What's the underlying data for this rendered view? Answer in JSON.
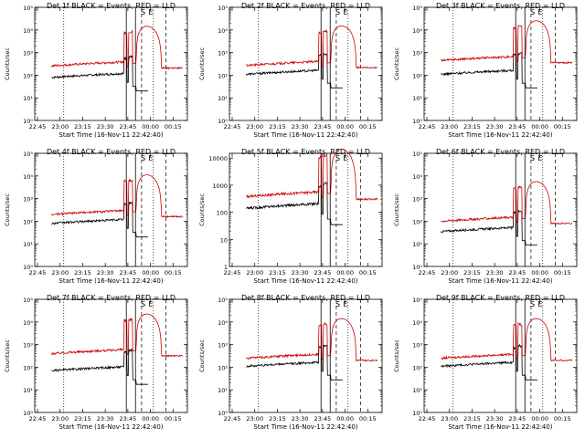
{
  "chart_data": [
    {
      "type": "line",
      "title": "Det 1f BLACK = Events, RED = LLD",
      "xlabel": "Start Time (16-Nov-11 22:42:40)",
      "ylabel": "Counts/sec",
      "yscale": "log",
      "xticks": [
        "22:45",
        "23:00",
        "23:15",
        "23:30",
        "23:45",
        "00:00",
        "00:15"
      ],
      "yticks": [
        "10⁰",
        "10¹",
        "10²",
        "10³",
        "10⁴",
        "10⁵"
      ],
      "ylim": [
        1,
        100000
      ],
      "flags": [
        "S",
        "E"
      ],
      "series": [
        {
          "name": "Events",
          "color": "#000000",
          "baseline": 80
        },
        {
          "name": "LLD",
          "color": "#cc0000",
          "baseline": 260
        }
      ]
    },
    {
      "type": "line",
      "title": "Det 2f BLACK = Events, RED = LLD",
      "xlabel": "Start Time (16-Nov-11 22:42:40)",
      "ylabel": "Counts/sec",
      "yscale": "log",
      "xticks": [
        "22:45",
        "23:00",
        "23:15",
        "23:30",
        "23:45",
        "00:00",
        "00:15"
      ],
      "yticks": [
        "10⁰",
        "10¹",
        "10²",
        "10³",
        "10⁴",
        "10⁵"
      ],
      "ylim": [
        1,
        100000
      ],
      "flags": [
        "S",
        "E"
      ],
      "series": [
        {
          "name": "Events",
          "color": "#000000",
          "baseline": 110
        },
        {
          "name": "LLD",
          "color": "#cc0000",
          "baseline": 270
        }
      ]
    },
    {
      "type": "line",
      "title": "Det 3f BLACK = Events, RED = LLD",
      "xlabel": "Start Time (16-Nov-11 22:42:40)",
      "ylabel": "Counts/sec",
      "yscale": "log",
      "xticks": [
        "22:45",
        "23:00",
        "23:15",
        "23:30",
        "23:45",
        "00:00",
        "00:15"
      ],
      "yticks": [
        "10⁰",
        "10¹",
        "10²",
        "10³",
        "10⁴",
        "10⁵"
      ],
      "ylim": [
        1,
        100000
      ],
      "flags": [
        "S",
        "E"
      ],
      "series": [
        {
          "name": "Events",
          "color": "#000000",
          "baseline": 110
        },
        {
          "name": "LLD",
          "color": "#cc0000",
          "baseline": 450
        }
      ]
    },
    {
      "type": "line",
      "title": "Det 4f BLACK = Events, RED = LLD",
      "xlabel": "Start Time (16-Nov-11 22:42:40)",
      "ylabel": "Counts/sec",
      "yscale": "log",
      "xticks": [
        "22:45",
        "23:00",
        "23:15",
        "23:30",
        "23:45",
        "00:00",
        "00:15"
      ],
      "yticks": [
        "10⁰",
        "10¹",
        "10²",
        "10³",
        "10⁴",
        "10⁵"
      ],
      "ylim": [
        1,
        100000
      ],
      "flags": [
        "S",
        "E"
      ],
      "series": [
        {
          "name": "Events",
          "color": "#000000",
          "baseline": 80
        },
        {
          "name": "LLD",
          "color": "#cc0000",
          "baseline": 200
        }
      ]
    },
    {
      "type": "line",
      "title": "Det 5f BLACK = Events, RED = LLD",
      "xlabel": "Start Time (16-Nov-11 22:42:40)",
      "ylabel": "Counts/sec",
      "yscale": "log",
      "xticks": [
        "22:45",
        "23:00",
        "23:15",
        "23:30",
        "23:45",
        "00:00",
        "00:15"
      ],
      "yticks": [
        "1",
        "10",
        "100",
        "1000",
        "10000"
      ],
      "ylim": [
        1,
        15000
      ],
      "flags": [
        "S",
        "E"
      ],
      "series": [
        {
          "name": "Events",
          "color": "#000000",
          "baseline": 140
        },
        {
          "name": "LLD",
          "color": "#cc0000",
          "baseline": 380
        }
      ]
    },
    {
      "type": "line",
      "title": "Det 6f BLACK = Events, RED = LLD",
      "xlabel": "Start Time (16-Nov-11 22:42:40)",
      "ylabel": "Counts/sec",
      "yscale": "log",
      "xticks": [
        "22:45",
        "23:00",
        "23:15",
        "23:30",
        "23:45",
        "00:00",
        "00:15"
      ],
      "yticks": [
        "10⁰",
        "10¹",
        "10²",
        "10³",
        "10⁴",
        "10⁵"
      ],
      "ylim": [
        1,
        100000
      ],
      "flags": [
        "S",
        "E"
      ],
      "series": [
        {
          "name": "Events",
          "color": "#000000",
          "baseline": 35
        },
        {
          "name": "LLD",
          "color": "#cc0000",
          "baseline": 100
        }
      ]
    },
    {
      "type": "line",
      "title": "Det 7f BLACK = Events, RED = LLD",
      "xlabel": "Start Time (16-Nov-11 22:42:40)",
      "ylabel": "Counts/sec",
      "yscale": "log",
      "xticks": [
        "22:45",
        "23:00",
        "23:15",
        "23:30",
        "23:45",
        "00:00",
        "00:15"
      ],
      "yticks": [
        "10⁰",
        "10¹",
        "10²",
        "10³",
        "10⁴",
        "10⁵"
      ],
      "ylim": [
        1,
        100000
      ],
      "flags": [
        "S",
        "E"
      ],
      "series": [
        {
          "name": "Events",
          "color": "#000000",
          "baseline": 70
        },
        {
          "name": "LLD",
          "color": "#cc0000",
          "baseline": 400
        }
      ]
    },
    {
      "type": "line",
      "title": "Det 8f BLACK = Events, RED = LLD",
      "xlabel": "Start Time (16-Nov-11 22:42:40)",
      "ylabel": "Counts/sec",
      "yscale": "log",
      "xticks": [
        "22:45",
        "23:00",
        "23:15",
        "23:30",
        "23:45",
        "00:00",
        "00:15"
      ],
      "yticks": [
        "10⁰",
        "10¹",
        "10²",
        "10³",
        "10⁴",
        "10⁵"
      ],
      "ylim": [
        1,
        100000
      ],
      "flags": [
        "S",
        "E"
      ],
      "series": [
        {
          "name": "Events",
          "color": "#000000",
          "baseline": 110
        },
        {
          "name": "LLD",
          "color": "#cc0000",
          "baseline": 250
        }
      ]
    },
    {
      "type": "line",
      "title": "Det 9f BLACK = Events, RED = LLD",
      "xlabel": "Start Time (16-Nov-11 22:42:40)",
      "ylabel": "Counts/sec",
      "yscale": "log",
      "xticks": [
        "22:45",
        "23:00",
        "23:15",
        "23:30",
        "23:45",
        "00:00",
        "00:15"
      ],
      "yticks": [
        "10⁰",
        "10¹",
        "10²",
        "10³",
        "10⁴",
        "10⁵"
      ],
      "ylim": [
        1,
        100000
      ],
      "flags": [
        "S",
        "E"
      ],
      "series": [
        {
          "name": "Events",
          "color": "#000000",
          "baseline": 110
        },
        {
          "name": "LLD",
          "color": "#cc0000",
          "baseline": 250
        }
      ]
    }
  ]
}
